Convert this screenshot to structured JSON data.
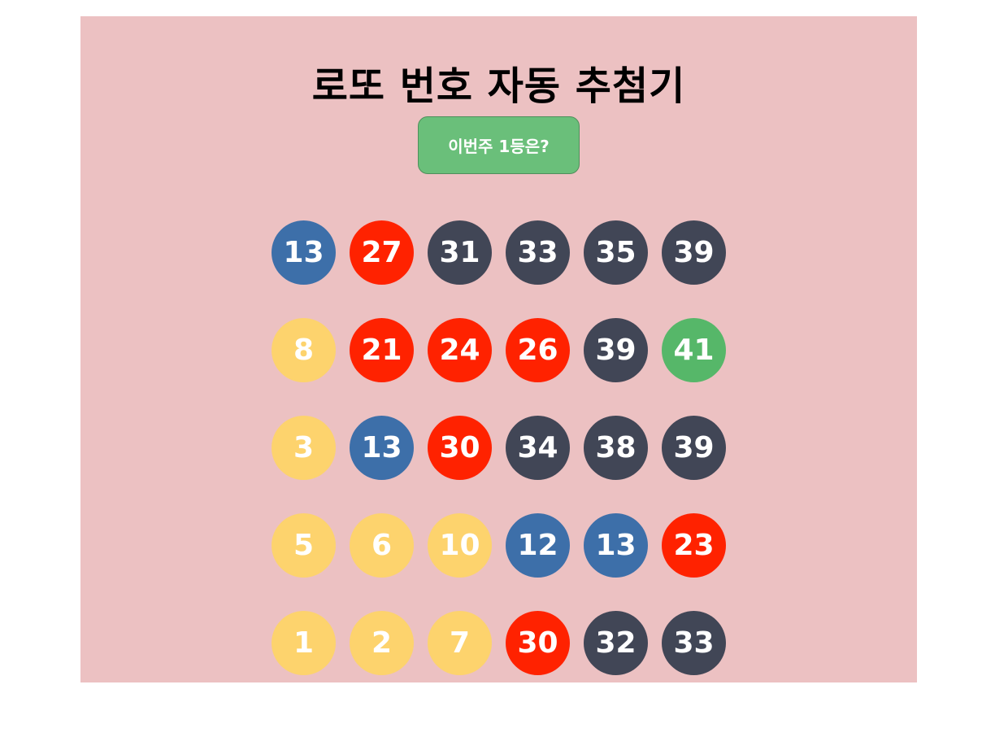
{
  "title": "로또 번호 자동 추첨기",
  "draw_button_label": "이번주 1등은?",
  "ball_colors": {
    "1-10": "#fdd36d",
    "11-20": "#3d6fa9",
    "21-30": "#ff2200",
    "31-40": "#414656",
    "41-45": "#56b769"
  },
  "rows": [
    [
      13,
      27,
      31,
      33,
      35,
      39
    ],
    [
      8,
      21,
      24,
      26,
      39,
      41
    ],
    [
      3,
      13,
      30,
      34,
      38,
      39
    ],
    [
      5,
      6,
      10,
      12,
      13,
      23
    ],
    [
      1,
      2,
      7,
      30,
      32,
      33
    ]
  ]
}
